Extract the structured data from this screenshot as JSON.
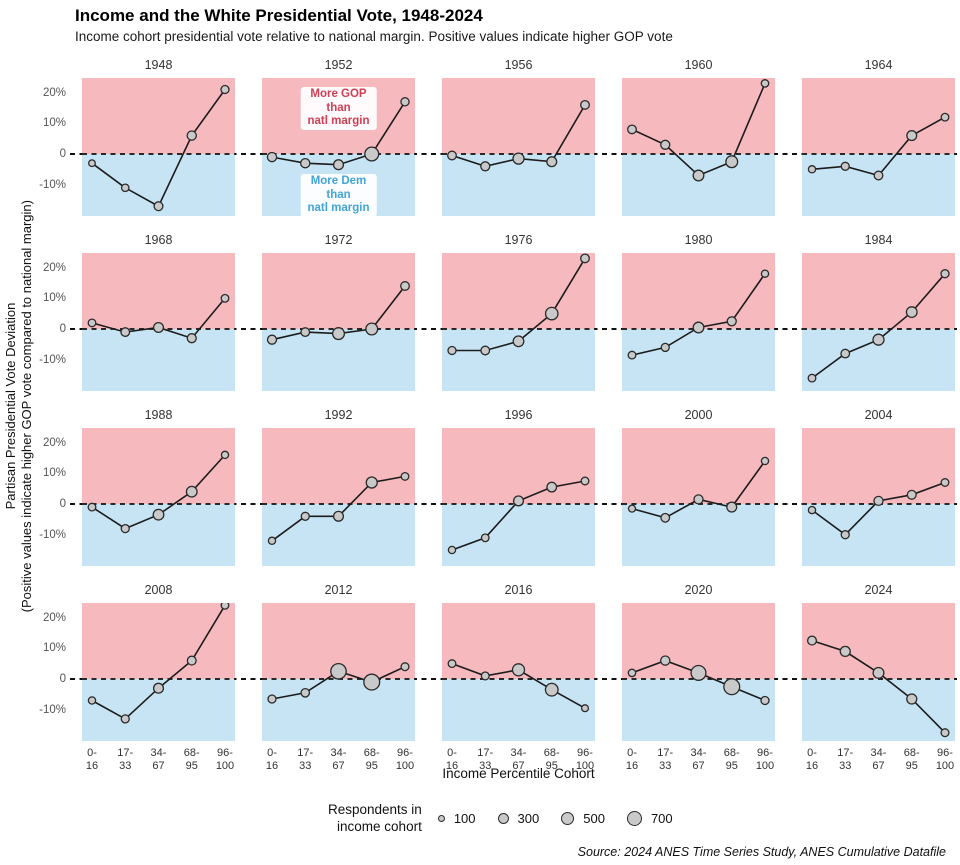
{
  "header": {
    "title": "Income and the White Presidential Vote, 1948-2024",
    "subtitle": "Income cohort presidential vote relative to national margin. Positive values indicate higher GOP vote"
  },
  "axis": {
    "y_title_line1": "Partisan Presidential Vote Deviation",
    "y_title_line2": "(Positive values indicate higher GOP vote compared to national margin)",
    "x_title": "Income Percentile Cohort"
  },
  "legend": {
    "label": "Respondents in\nincome cohort"
  },
  "footer": {
    "source": "Source: 2024 ANES Time Series Study, ANES Cumulative Datafile"
  },
  "colors": {
    "gop_region": "#f6b9be",
    "dem_region": "#c6e4f3",
    "gop_text": "#d04055",
    "dem_text": "#41a6d7",
    "point_fill": "#c9c9c9",
    "point_stroke": "#2b2b2b",
    "line": "#1c1c1c",
    "zero_line": "#111111"
  },
  "chart_data": {
    "type": "line",
    "small_multiples": true,
    "layout": {
      "rows": 4,
      "cols": 5,
      "grid": false,
      "legend_position": "bottom"
    },
    "categories": [
      "0-16",
      "17-33",
      "34-67",
      "68-95",
      "96-100"
    ],
    "ylim": [
      -21,
      25
    ],
    "yticks": [
      {
        "value": 20,
        "label": "20%"
      },
      {
        "value": 10,
        "label": "10%"
      },
      {
        "value": 0,
        "label": "0"
      },
      {
        "value": -10,
        "label": "-10%"
      }
    ],
    "value_unit": "percentage point deviation from national margin",
    "point_size_unit": "respondents in income cohort",
    "size_legend": [
      100,
      300,
      500,
      700
    ],
    "annotations": {
      "panel": "1952",
      "gop": "More GOP than\nnatl margin",
      "dem": "More Dem than\nnatl margin"
    },
    "panels": [
      {
        "year": "1948",
        "values": [
          -3,
          -11,
          -17,
          6,
          21
        ],
        "respondents": [
          60,
          100,
          170,
          200,
          130
        ]
      },
      {
        "year": "1952",
        "values": [
          -1,
          -3,
          -3.5,
          0,
          17
        ],
        "respondents": [
          200,
          200,
          230,
          550,
          140
        ]
      },
      {
        "year": "1956",
        "values": [
          -0.5,
          -4,
          -1.5,
          -2.5,
          16
        ],
        "respondents": [
          160,
          190,
          320,
          240,
          160
        ]
      },
      {
        "year": "1960",
        "values": [
          8,
          3,
          -7,
          -2.5,
          23
        ],
        "respondents": [
          160,
          190,
          290,
          380,
          100
        ]
      },
      {
        "year": "1964",
        "values": [
          -5,
          -4,
          -7,
          6,
          12
        ],
        "respondents": [
          90,
          130,
          160,
          240,
          110
        ]
      },
      {
        "year": "1968",
        "values": [
          2,
          -1,
          0.5,
          -3,
          10
        ],
        "respondents": [
          110,
          160,
          240,
          190,
          110
        ]
      },
      {
        "year": "1972",
        "values": [
          -3.5,
          -1,
          -1.5,
          0,
          14
        ],
        "respondents": [
          190,
          160,
          380,
          380,
          160
        ]
      },
      {
        "year": "1976",
        "values": [
          -7,
          -7,
          -4,
          5,
          23
        ],
        "respondents": [
          130,
          160,
          290,
          430,
          160
        ]
      },
      {
        "year": "1980",
        "values": [
          -8.5,
          -6,
          0.5,
          2.5,
          18
        ],
        "respondents": [
          110,
          130,
          290,
          190,
          90
        ]
      },
      {
        "year": "1984",
        "values": [
          -16,
          -8,
          -3.5,
          5.5,
          18
        ],
        "respondents": [
          110,
          160,
          320,
          290,
          130
        ]
      },
      {
        "year": "1988",
        "values": [
          -1,
          -8,
          -3.5,
          4,
          16
        ],
        "respondents": [
          110,
          130,
          290,
          290,
          90
        ]
      },
      {
        "year": "1992",
        "values": [
          -12,
          -4,
          -4,
          7,
          9
        ],
        "respondents": [
          90,
          130,
          240,
          320,
          110
        ]
      },
      {
        "year": "1996",
        "values": [
          -15,
          -11,
          1,
          5.5,
          7.5
        ],
        "respondents": [
          90,
          110,
          240,
          220,
          110
        ]
      },
      {
        "year": "2000",
        "values": [
          -1.5,
          -4.5,
          1.5,
          -1,
          14
        ],
        "respondents": [
          80,
          160,
          190,
          240,
          90
        ]
      },
      {
        "year": "2004",
        "values": [
          -2,
          -10,
          1,
          3,
          7
        ],
        "respondents": [
          90,
          130,
          190,
          180,
          110
        ]
      },
      {
        "year": "2008",
        "values": [
          -7,
          -13,
          -3,
          6,
          24
        ],
        "respondents": [
          90,
          130,
          240,
          180,
          110
        ]
      },
      {
        "year": "2012",
        "values": [
          -6.5,
          -4.5,
          2.5,
          -1,
          4
        ],
        "respondents": [
          130,
          150,
          700,
          750,
          120
        ]
      },
      {
        "year": "2016",
        "values": [
          5,
          1,
          3,
          -3.5,
          -9.5
        ],
        "respondents": [
          110,
          120,
          400,
          450,
          70
        ]
      },
      {
        "year": "2020",
        "values": [
          2,
          6,
          2,
          -2.5,
          -7
        ],
        "respondents": [
          100,
          200,
          650,
          750,
          130
        ]
      },
      {
        "year": "2024",
        "values": [
          12.5,
          9,
          2,
          -6.5,
          -17.5
        ],
        "respondents": [
          170,
          250,
          300,
          250,
          120
        ]
      }
    ]
  }
}
